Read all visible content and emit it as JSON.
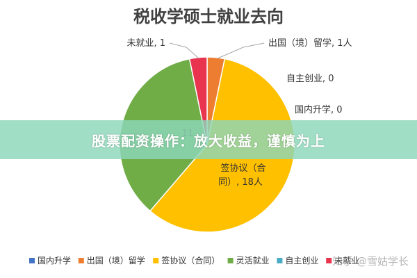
{
  "chart_data": {
    "type": "pie",
    "title": "税收学硕士就业去向",
    "categories": [
      "国内升学",
      "出国（境）留学",
      "签协议（合同）",
      "灵活就业",
      "自主创业",
      "未就业"
    ],
    "values": [
      0,
      1,
      18,
      11,
      0,
      1
    ],
    "colors": [
      "#4472c4",
      "#ed7d31",
      "#ffc000",
      "#70ad47",
      "#4bacc6",
      "#e8344e"
    ],
    "slice_labels": {
      "未就业": "未就业, 1",
      "出国（境）留学": "出国（境）留学, 1人",
      "自主创业": "自主创业, 0",
      "国内升学": "国内升学, 0",
      "签协议（合同）_line1": "签协议（合",
      "签协议（合同）_line2": "同）, 18人",
      "灵活就业": "11"
    },
    "legend": {
      "position": "bottom",
      "entries": [
        "国内升学",
        "出国（境）留学",
        "签协议（合同）",
        "灵活就业",
        "自主创业",
        "未就业"
      ]
    }
  },
  "banner": {
    "text": "股票配资操作：放大收益，谨慎为上"
  },
  "watermark": {
    "text": "知乎 @雪姑学长"
  }
}
